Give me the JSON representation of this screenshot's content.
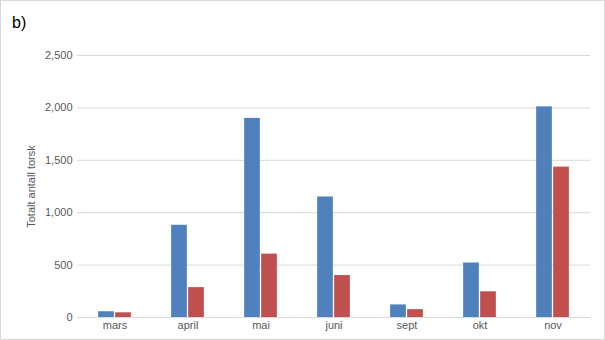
{
  "chart_data": {
    "type": "bar",
    "title": "b)",
    "y_label": "Totalt antall torsk",
    "categories": [
      "mars",
      "april",
      "mai",
      "juni",
      "sept",
      "okt",
      "nov"
    ],
    "series": [
      {
        "color": "#4f81bd",
        "values": [
          55,
          880,
          1900,
          1150,
          120,
          520,
          2010
        ]
      },
      {
        "color": "#c0504d",
        "values": [
          45,
          285,
          605,
          400,
          75,
          245,
          1435
        ]
      }
    ],
    "ylim": [
      0,
      2500
    ],
    "yticks": [
      0,
      500,
      1000,
      1500,
      2000,
      2500
    ],
    "grid": true
  }
}
